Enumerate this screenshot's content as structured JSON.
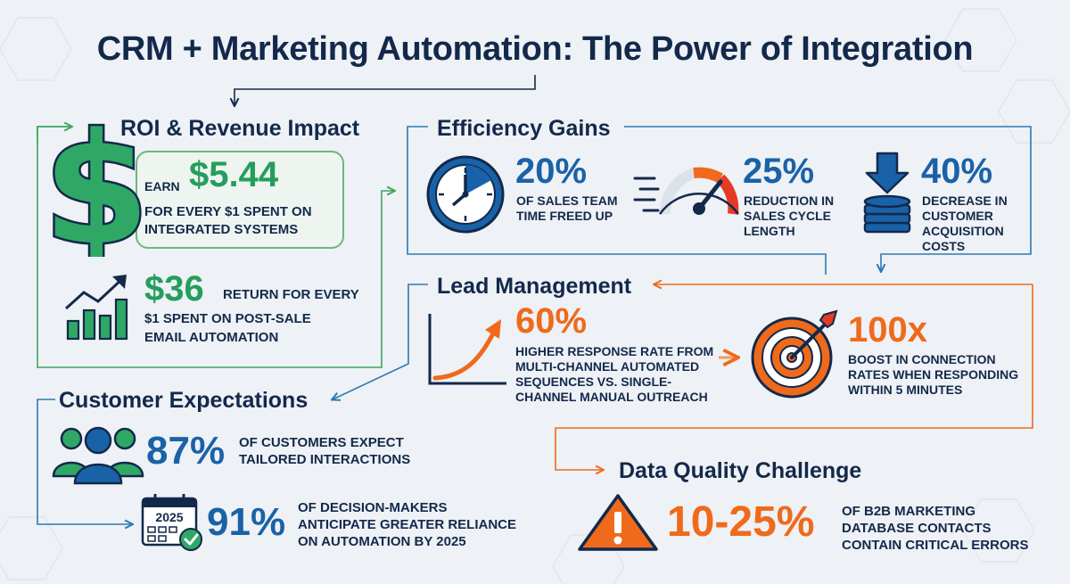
{
  "title": "CRM + Marketing Automation: The Power of Integration",
  "colors": {
    "navy": "#13294b",
    "blue": "#1a62a8",
    "green": "#239e5c",
    "orange": "#ef6a1b",
    "red": "#e53a26"
  },
  "roi": {
    "title": "ROI & Revenue Impact",
    "icon": "dollar-sign-icon",
    "earn_prefix": "EARN",
    "earn_value": "$5.44",
    "earn_desc_1": "for EVERY $1 SPENT ON",
    "earn_desc_2": "INTEGRATED SYSTEMS",
    "email_value": "$36",
    "email_desc_1": "RETURN FOR EVERY",
    "email_desc_2": "$1 SPENT ON POST-SALE",
    "email_desc_3": "EMAIL AUTOMATION",
    "growth_icon": "growth-chart-icon"
  },
  "efficiency": {
    "title": "Efficiency Gains",
    "stats": [
      {
        "icon": "clock-icon",
        "value": "20%",
        "lines": [
          "of SALES TEAM",
          "TIME FREED UP"
        ]
      },
      {
        "icon": "speedometer-icon",
        "value": "25%",
        "lines": [
          "REDUCTION IN",
          "SALES CYCLE",
          "LENGTH"
        ]
      },
      {
        "icon": "coins-down-icon",
        "value": "40%",
        "lines": [
          "DECREASE IN",
          "CUSTOMER",
          "ACQUISITION",
          "COSTS"
        ]
      }
    ]
  },
  "lead": {
    "title": "Lead Management",
    "stats": [
      {
        "icon": "rising-curve-icon",
        "value": "60%",
        "lines": [
          "HIGHER RESPONSE RATE from",
          "MULTI-CHANNEL AUTOMATED",
          "SEQUENCES vs. SINGLE-",
          "CHANNEL MANUAL OUTREACH"
        ]
      },
      {
        "icon": "target-icon",
        "value": "100x",
        "lines": [
          "BOOST IN CONNECTION",
          "RATES WHEN RESPONDING",
          "WITHIN 5 MINUTES"
        ]
      }
    ]
  },
  "customer": {
    "title": "Customer Expectations",
    "stats": [
      {
        "icon": "people-icon",
        "value": "87%",
        "lines": [
          "of CUSTOMERS EXPECT",
          "TAILORED INTERACTIONS"
        ]
      },
      {
        "icon": "calendar-check-icon",
        "calendar_year": "2025",
        "value": "91%",
        "lines": [
          "of DECISION-MAKERS",
          "ANTICIPATE GREATER RELIANCE",
          "ON AUTOMATION BY 2025"
        ]
      }
    ]
  },
  "data_quality": {
    "title": "Data Quality Challenge",
    "icon": "warning-icon",
    "value": "10-25%",
    "lines": [
      "of B2B MARKETING",
      "DATABASE CONTACTS",
      "CONTAIN CRITICAL ERRORS"
    ]
  }
}
